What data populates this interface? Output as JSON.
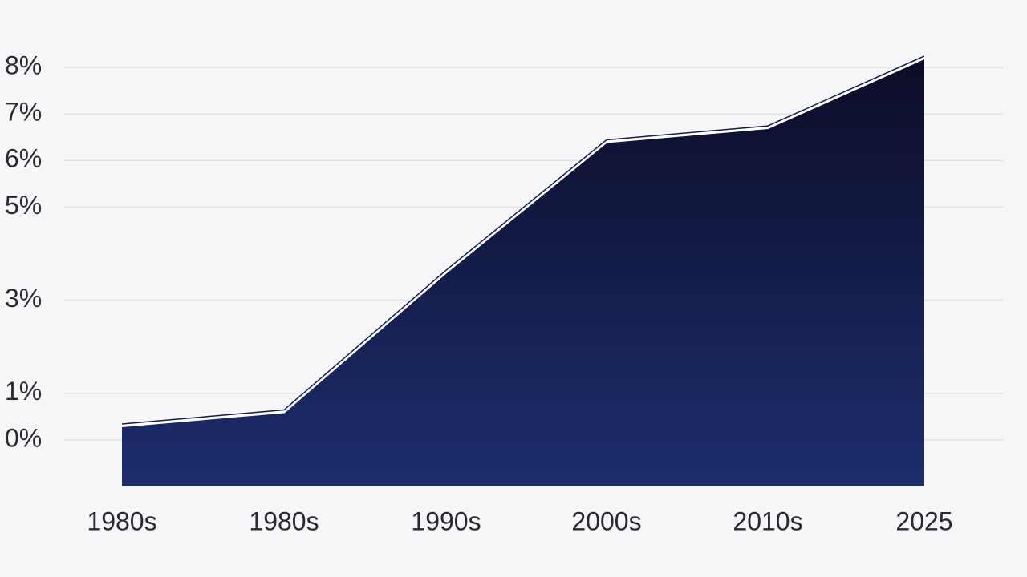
{
  "chart_data": {
    "type": "area",
    "categories": [
      "1980s",
      "1980s",
      "1990s",
      "2000s",
      "2010s",
      "2025"
    ],
    "values": [
      0.3,
      0.6,
      3.6,
      6.4,
      6.7,
      8.2
    ],
    "color": "#141c4a",
    "ylim": [
      -1,
      8.5
    ],
    "yticks": [
      {
        "value": 0,
        "label": "0%"
      },
      {
        "value": 1,
        "label": "1%"
      },
      {
        "value": 3,
        "label": "3%"
      },
      {
        "value": 5,
        "label": "5%"
      },
      {
        "value": 6,
        "label": "6%"
      },
      {
        "value": 7,
        "label": "7%"
      },
      {
        "value": 8,
        "label": "8%"
      }
    ],
    "grid": true
  }
}
